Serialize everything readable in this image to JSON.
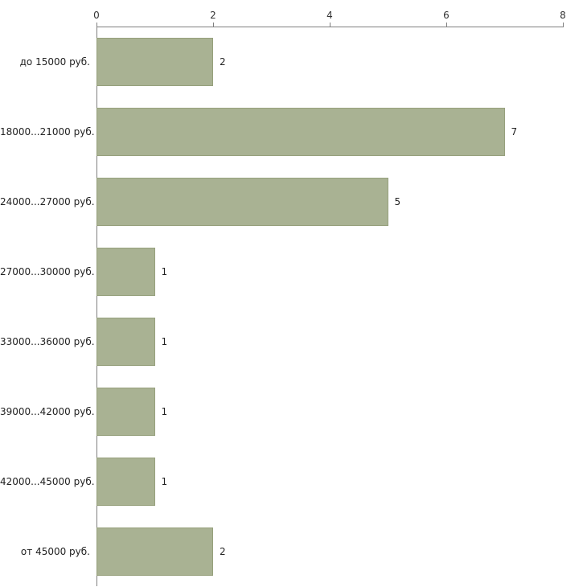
{
  "chart_data": {
    "type": "bar",
    "orientation": "horizontal",
    "title": "",
    "xlabel": "",
    "ylabel": "",
    "categories": [
      "до 15000 руб.",
      "18000...21000 руб.",
      "24000...27000 руб.",
      "27000...30000 руб.",
      "33000...36000 руб.",
      "39000...42000 руб.",
      "42000...45000 руб.",
      "от 45000 руб."
    ],
    "values": [
      2,
      7,
      5,
      1,
      1,
      1,
      1,
      2
    ],
    "value_labels": [
      "2",
      "7",
      "5",
      "1",
      "1",
      "1",
      "1",
      "2"
    ],
    "xlim": [
      0,
      8
    ],
    "x_ticks": [
      "0",
      "2",
      "4",
      "6",
      "8"
    ],
    "x_tick_values": [
      0,
      2,
      4,
      6,
      8
    ],
    "grid": false,
    "legend": false,
    "bar_color": "#a9b293",
    "bar_border_color": "#96a07c",
    "axis_color": "#7f7f7f",
    "text_color": "#222222",
    "background_color": "#ffffff"
  }
}
